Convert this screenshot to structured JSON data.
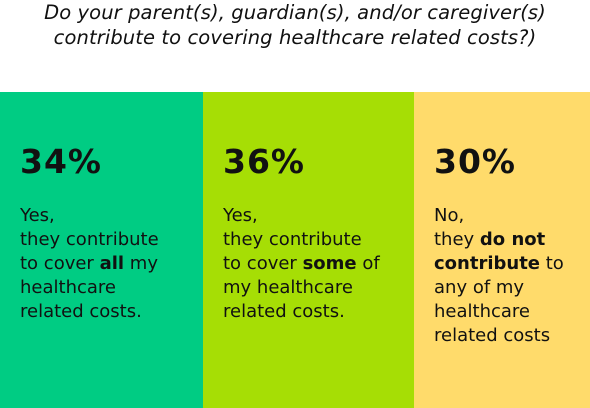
{
  "title": {
    "line1": "Do your parent(s), guardian(s), and/or caregiver(s)",
    "line2": "contribute to covering healthcare related costs?)"
  },
  "colors": {
    "all": "#00CC83",
    "some": "#A6DE05",
    "none": "#FFDB6B"
  },
  "chart_data": {
    "type": "bar",
    "title": "Do your parent(s), guardian(s), and/or caregiver(s) contribute to covering healthcare related costs?)",
    "categories": [
      "Yes, they contribute to cover all my healthcare related costs.",
      "Yes, they contribute to cover some of my healthcare related costs.",
      "No, they do not contribute to any of my healthcare related costs"
    ],
    "values": [
      34,
      36,
      30
    ],
    "unit": "%"
  },
  "panels": [
    {
      "percent": "34%",
      "lines": [
        {
          "pre": "Yes,",
          "bold": "",
          "post": ""
        },
        {
          "pre": "they contribute",
          "bold": "",
          "post": ""
        },
        {
          "pre": "to cover ",
          "bold": "all",
          "post": " my"
        },
        {
          "pre": "healthcare",
          "bold": "",
          "post": ""
        },
        {
          "pre": "related costs.",
          "bold": "",
          "post": ""
        }
      ]
    },
    {
      "percent": "36%",
      "lines": [
        {
          "pre": "Yes,",
          "bold": "",
          "post": ""
        },
        {
          "pre": "they contribute",
          "bold": "",
          "post": ""
        },
        {
          "pre": "to cover ",
          "bold": "some",
          "post": " of"
        },
        {
          "pre": "my healthcare",
          "bold": "",
          "post": ""
        },
        {
          "pre": "related costs.",
          "bold": "",
          "post": ""
        }
      ]
    },
    {
      "percent": "30%",
      "lines": [
        {
          "pre": "No,",
          "bold": "",
          "post": ""
        },
        {
          "pre": "they ",
          "bold": "do not",
          "post": ""
        },
        {
          "pre": "",
          "bold": "contribute",
          "post": " to"
        },
        {
          "pre": "any of my",
          "bold": "",
          "post": ""
        },
        {
          "pre": "healthcare",
          "bold": "",
          "post": ""
        },
        {
          "pre": "related costs",
          "bold": "",
          "post": ""
        }
      ]
    }
  ]
}
